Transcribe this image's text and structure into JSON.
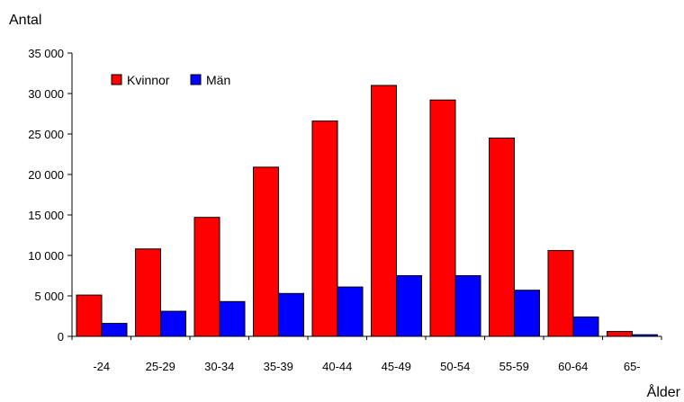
{
  "chart_data": {
    "type": "bar",
    "ylabel": "Antal",
    "xlabel": "Ålder",
    "categories": [
      "-24",
      "25-29",
      "30-34",
      "35-39",
      "40-44",
      "45-49",
      "50-54",
      "55-59",
      "60-64",
      "65-"
    ],
    "series": [
      {
        "name": "Kvinnor",
        "color": "#ff0000",
        "values": [
          5100,
          10800,
          14700,
          20900,
          26600,
          31000,
          29200,
          24500,
          10600,
          600
        ]
      },
      {
        "name": "Män",
        "color": "#0000ff",
        "values": [
          1600,
          3100,
          4300,
          5300,
          6100,
          7500,
          7500,
          5700,
          2400,
          200
        ]
      }
    ],
    "ylim": [
      0,
      35000
    ],
    "yticks": [
      0,
      5000,
      10000,
      15000,
      20000,
      25000,
      30000,
      35000
    ],
    "ytick_labels": [
      "0",
      "5 000",
      "10 000",
      "15 000",
      "20 000",
      "25 000",
      "30 000",
      "35 000"
    ],
    "grid": false,
    "legend_position": "top-left"
  }
}
